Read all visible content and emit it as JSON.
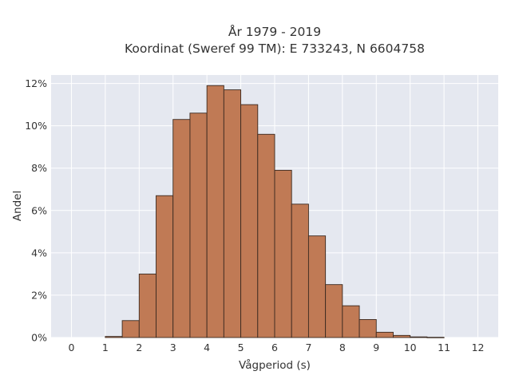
{
  "chart_data": {
    "type": "bar",
    "title_line1": "År 1979 - 2019",
    "title_line2": "Koordinat (Sweref 99 TM): E 733243, N 6604758",
    "xlabel": "Vågperiod (s)",
    "ylabel": "Andel",
    "xlim": [
      -0.6,
      12.6
    ],
    "ylim": [
      0,
      12.4
    ],
    "x_ticks": [
      0,
      1,
      2,
      3,
      4,
      5,
      6,
      7,
      8,
      9,
      10,
      11,
      12
    ],
    "y_ticks": [
      {
        "value": 0,
        "label": "0%"
      },
      {
        "value": 2,
        "label": "2%"
      },
      {
        "value": 4,
        "label": "4%"
      },
      {
        "value": 6,
        "label": "6%"
      },
      {
        "value": 8,
        "label": "8%"
      },
      {
        "value": 10,
        "label": "10%"
      },
      {
        "value": 12,
        "label": "12%"
      }
    ],
    "bin_width": 0.5,
    "bins": [
      {
        "start": 1.0,
        "value": 0.05
      },
      {
        "start": 1.5,
        "value": 0.8
      },
      {
        "start": 2.0,
        "value": 3.0
      },
      {
        "start": 2.5,
        "value": 6.7
      },
      {
        "start": 3.0,
        "value": 10.3
      },
      {
        "start": 3.5,
        "value": 10.6
      },
      {
        "start": 4.0,
        "value": 11.9
      },
      {
        "start": 4.5,
        "value": 11.7
      },
      {
        "start": 5.0,
        "value": 11.0
      },
      {
        "start": 5.5,
        "value": 9.6
      },
      {
        "start": 6.0,
        "value": 7.9
      },
      {
        "start": 6.5,
        "value": 6.3
      },
      {
        "start": 7.0,
        "value": 4.8
      },
      {
        "start": 7.5,
        "value": 2.5
      },
      {
        "start": 8.0,
        "value": 1.5
      },
      {
        "start": 8.5,
        "value": 0.85
      },
      {
        "start": 9.0,
        "value": 0.25
      },
      {
        "start": 9.5,
        "value": 0.1
      },
      {
        "start": 10.0,
        "value": 0.03
      },
      {
        "start": 10.5,
        "value": 0.01
      }
    ],
    "grid": true,
    "colors": {
      "bar": "#c07a55",
      "bar_edge": "#3b2a20",
      "plot_bg": "#e5e8f0",
      "grid": "#ffffff"
    }
  }
}
